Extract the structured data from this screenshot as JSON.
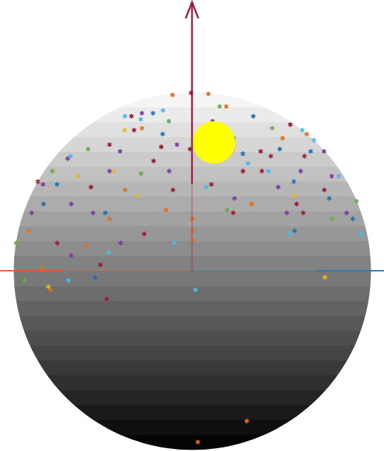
{
  "chart_data": {
    "type": "scatter",
    "tick_labels": false,
    "series": [
      {
        "color": "#9b1b30",
        "marker": "asterisk",
        "values": [
          [
            -5,
            85
          ],
          [
            -32,
            52
          ],
          [
            73,
            55
          ],
          [
            -41,
            45
          ],
          [
            35,
            40
          ],
          [
            -16,
            38
          ],
          [
            -14,
            44
          ],
          [
            20,
            34
          ],
          [
            28,
            34
          ],
          [
            55,
            40
          ],
          [
            -40,
            28
          ],
          [
            -7,
            27
          ],
          [
            7,
            29
          ],
          [
            41,
            19
          ],
          [
            -31,
            2
          ],
          [
            -29,
            -9
          ],
          [
            -50,
            9
          ],
          [
            -16,
            12
          ],
          [
            14,
            19
          ],
          [
            -1,
            43
          ],
          [
            -43,
            60
          ],
          [
            39,
            22
          ],
          [
            -88,
            30
          ],
          [
            56,
            27
          ],
          [
            31,
            42
          ]
        ]
      },
      {
        "color": "#e0701f",
        "marker": "asterisk",
        "values": [
          [
            -40,
            80
          ],
          [
            40,
            82
          ],
          [
            0,
            17
          ],
          [
            0,
            13
          ],
          [
            -9,
            20
          ],
          [
            -37,
            8
          ],
          [
            0,
            10
          ],
          [
            29,
            67
          ],
          [
            -29,
            17
          ],
          [
            21,
            22
          ],
          [
            -70,
            13
          ],
          [
            -28,
            53
          ],
          [
            -57,
            1
          ],
          [
            -53,
            -6
          ],
          [
            34,
            -57
          ],
          [
            6,
            -73
          ],
          [
            49,
            48
          ],
          [
            85,
            50
          ],
          [
            -25,
            27
          ]
        ]
      },
      {
        "color": "#7b3aa0",
        "marker": "asterisk",
        "values": [
          [
            -37,
            62
          ],
          [
            -64,
            39
          ],
          [
            -73,
            29
          ],
          [
            -72,
            19
          ],
          [
            -47,
            22
          ],
          [
            -36,
            19
          ],
          [
            -24,
            9
          ],
          [
            15,
            24
          ],
          [
            83,
            42
          ],
          [
            33,
            28
          ],
          [
            47,
            34
          ],
          [
            66,
            19
          ],
          [
            -43,
            5
          ],
          [
            -7,
            45
          ],
          [
            -9,
            34
          ],
          [
            -34,
            34
          ],
          [
            34,
            19
          ],
          [
            -33,
            42
          ],
          [
            12,
            57
          ],
          [
            67,
            32
          ]
        ]
      },
      {
        "color": "#4db8e8",
        "marker": "asterisk",
        "values": [
          [
            -49,
            60
          ],
          [
            88,
            52
          ],
          [
            -33,
            58
          ],
          [
            5,
            28
          ],
          [
            -6,
            9
          ],
          [
            34,
            12
          ],
          [
            31,
            34
          ],
          [
            1,
            -6
          ],
          [
            -28,
            6
          ],
          [
            -63,
            40
          ],
          [
            75,
            32
          ],
          [
            74,
            12
          ],
          [
            23,
            37
          ],
          [
            -22,
            64
          ],
          [
            10,
            39
          ],
          [
            86,
            47
          ],
          [
            -44,
            -3
          ]
        ]
      },
      {
        "color": "#1f6fb5",
        "marker": "asterisk",
        "values": [
          [
            -28,
            62
          ],
          [
            41,
            30
          ],
          [
            20,
            48
          ],
          [
            57,
            24
          ],
          [
            -31,
            19
          ],
          [
            -60,
            29
          ],
          [
            36,
            13
          ],
          [
            70,
            17
          ],
          [
            -33,
            -2
          ],
          [
            43,
            60
          ],
          [
            -15,
            50
          ],
          [
            63,
            42
          ],
          [
            22,
            41
          ],
          [
            -64,
            22
          ],
          [
            42,
            43
          ]
        ]
      },
      {
        "color": "#6aab48",
        "marker": "asterisk",
        "values": [
          [
            -14,
            57
          ],
          [
            23,
            67
          ],
          [
            -53,
            43
          ],
          [
            12,
            20
          ],
          [
            -88,
            9
          ],
          [
            55,
            17
          ],
          [
            -71,
            34
          ],
          [
            -20,
            33
          ],
          [
            48,
            53
          ],
          [
            87,
            23
          ],
          [
            -70,
            -3
          ]
        ]
      },
      {
        "color": "#e0b830",
        "marker": "asterisk",
        "values": [
          [
            -32,
            34
          ],
          [
            -20,
            25
          ],
          [
            39,
            25
          ],
          [
            48,
            -2
          ],
          [
            -54,
            -5
          ],
          [
            18,
            43
          ],
          [
            -38,
            52
          ],
          [
            -49,
            32
          ]
        ]
      },
      {
        "color": "#ffff00",
        "marker": "circle",
        "values": [
          [
            10,
            46
          ]
        ]
      }
    ]
  }
}
